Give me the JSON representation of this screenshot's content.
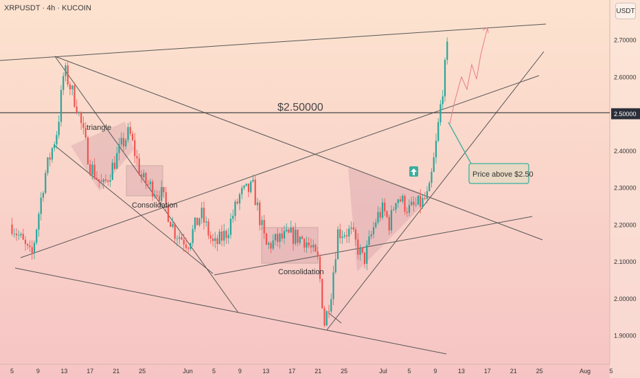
{
  "header": {
    "symbol": "XRPUSDT · 4h · KUCOIN",
    "currency": "USDT"
  },
  "colors": {
    "up": "#26a69a",
    "down": "#ef5350",
    "line": "#555555",
    "label_bg": "#2a2e39",
    "bg_top": "#fde3cf",
    "bg_bottom": "#f6c4c4",
    "callout_border": "#3bae9f",
    "callout_bg": "#e8d8c4"
  },
  "annotations": {
    "level_label": "$2.50000",
    "triangle": "triangle",
    "consolidation_1": "Consolidation",
    "consolidation_2": "Consolidation",
    "callout": "Price above $2.50",
    "arrow_icon": "up-arrow-icon"
  },
  "chart_data": {
    "type": "candlestick",
    "title": "XRPUSDT · 4h · KUCOIN",
    "y_unit": "USDT",
    "ylim": [
      1.85,
      2.78
    ],
    "y_ticks": [
      "2.70000",
      "2.60000",
      "2.50000",
      "2.40000",
      "2.30000",
      "2.20000",
      "2.10000",
      "2.00000",
      "1.90000"
    ],
    "highlight_level": {
      "value": 2.5,
      "label": "2.50000"
    },
    "x_ticks": [
      "5",
      "9",
      "13",
      "17",
      "21",
      "25",
      "Jun",
      "5",
      "9",
      "13",
      "17",
      "21",
      "25",
      "Jul",
      "5",
      "9",
      "13",
      "17",
      "21",
      "25",
      "Aug",
      "5"
    ],
    "close_path": [
      {
        "date": "2025-05-05",
        "close": 2.2
      },
      {
        "date": "2025-05-08",
        "close": 2.11
      },
      {
        "date": "2025-05-10",
        "close": 2.33
      },
      {
        "date": "2025-05-12",
        "close": 2.46
      },
      {
        "date": "2025-05-13",
        "close": 2.62
      },
      {
        "date": "2025-05-15",
        "close": 2.52
      },
      {
        "date": "2025-05-17",
        "close": 2.36
      },
      {
        "date": "2025-05-19",
        "close": 2.3
      },
      {
        "date": "2025-05-22",
        "close": 2.42
      },
      {
        "date": "2025-05-23",
        "close": 2.45
      },
      {
        "date": "2025-05-25",
        "close": 2.32
      },
      {
        "date": "2025-05-28",
        "close": 2.28
      },
      {
        "date": "2025-05-30",
        "close": 2.18
      },
      {
        "date": "2025-06-01",
        "close": 2.15
      },
      {
        "date": "2025-06-03",
        "close": 2.23
      },
      {
        "date": "2025-06-05",
        "close": 2.14
      },
      {
        "date": "2025-06-07",
        "close": 2.18
      },
      {
        "date": "2025-06-09",
        "close": 2.28
      },
      {
        "date": "2025-06-11",
        "close": 2.3
      },
      {
        "date": "2025-06-13",
        "close": 2.14
      },
      {
        "date": "2025-06-15",
        "close": 2.16
      },
      {
        "date": "2025-06-17",
        "close": 2.17
      },
      {
        "date": "2025-06-19",
        "close": 2.16
      },
      {
        "date": "2025-06-21",
        "close": 2.1
      },
      {
        "date": "2025-06-22",
        "close": 1.93
      },
      {
        "date": "2025-06-23",
        "close": 2.02
      },
      {
        "date": "2025-06-24",
        "close": 2.18
      },
      {
        "date": "2025-06-26",
        "close": 2.18
      },
      {
        "date": "2025-06-28",
        "close": 2.1
      },
      {
        "date": "2025-06-30",
        "close": 2.22
      },
      {
        "date": "2025-07-01",
        "close": 2.24
      },
      {
        "date": "2025-07-02",
        "close": 2.2
      },
      {
        "date": "2025-07-03",
        "close": 2.28
      },
      {
        "date": "2025-07-05",
        "close": 2.24
      },
      {
        "date": "2025-07-07",
        "close": 2.26
      },
      {
        "date": "2025-07-08",
        "close": 2.28
      },
      {
        "date": "2025-07-09",
        "close": 2.4
      },
      {
        "date": "2025-07-10",
        "close": 2.55
      },
      {
        "date": "2025-07-11",
        "close": 2.7
      }
    ]
  }
}
